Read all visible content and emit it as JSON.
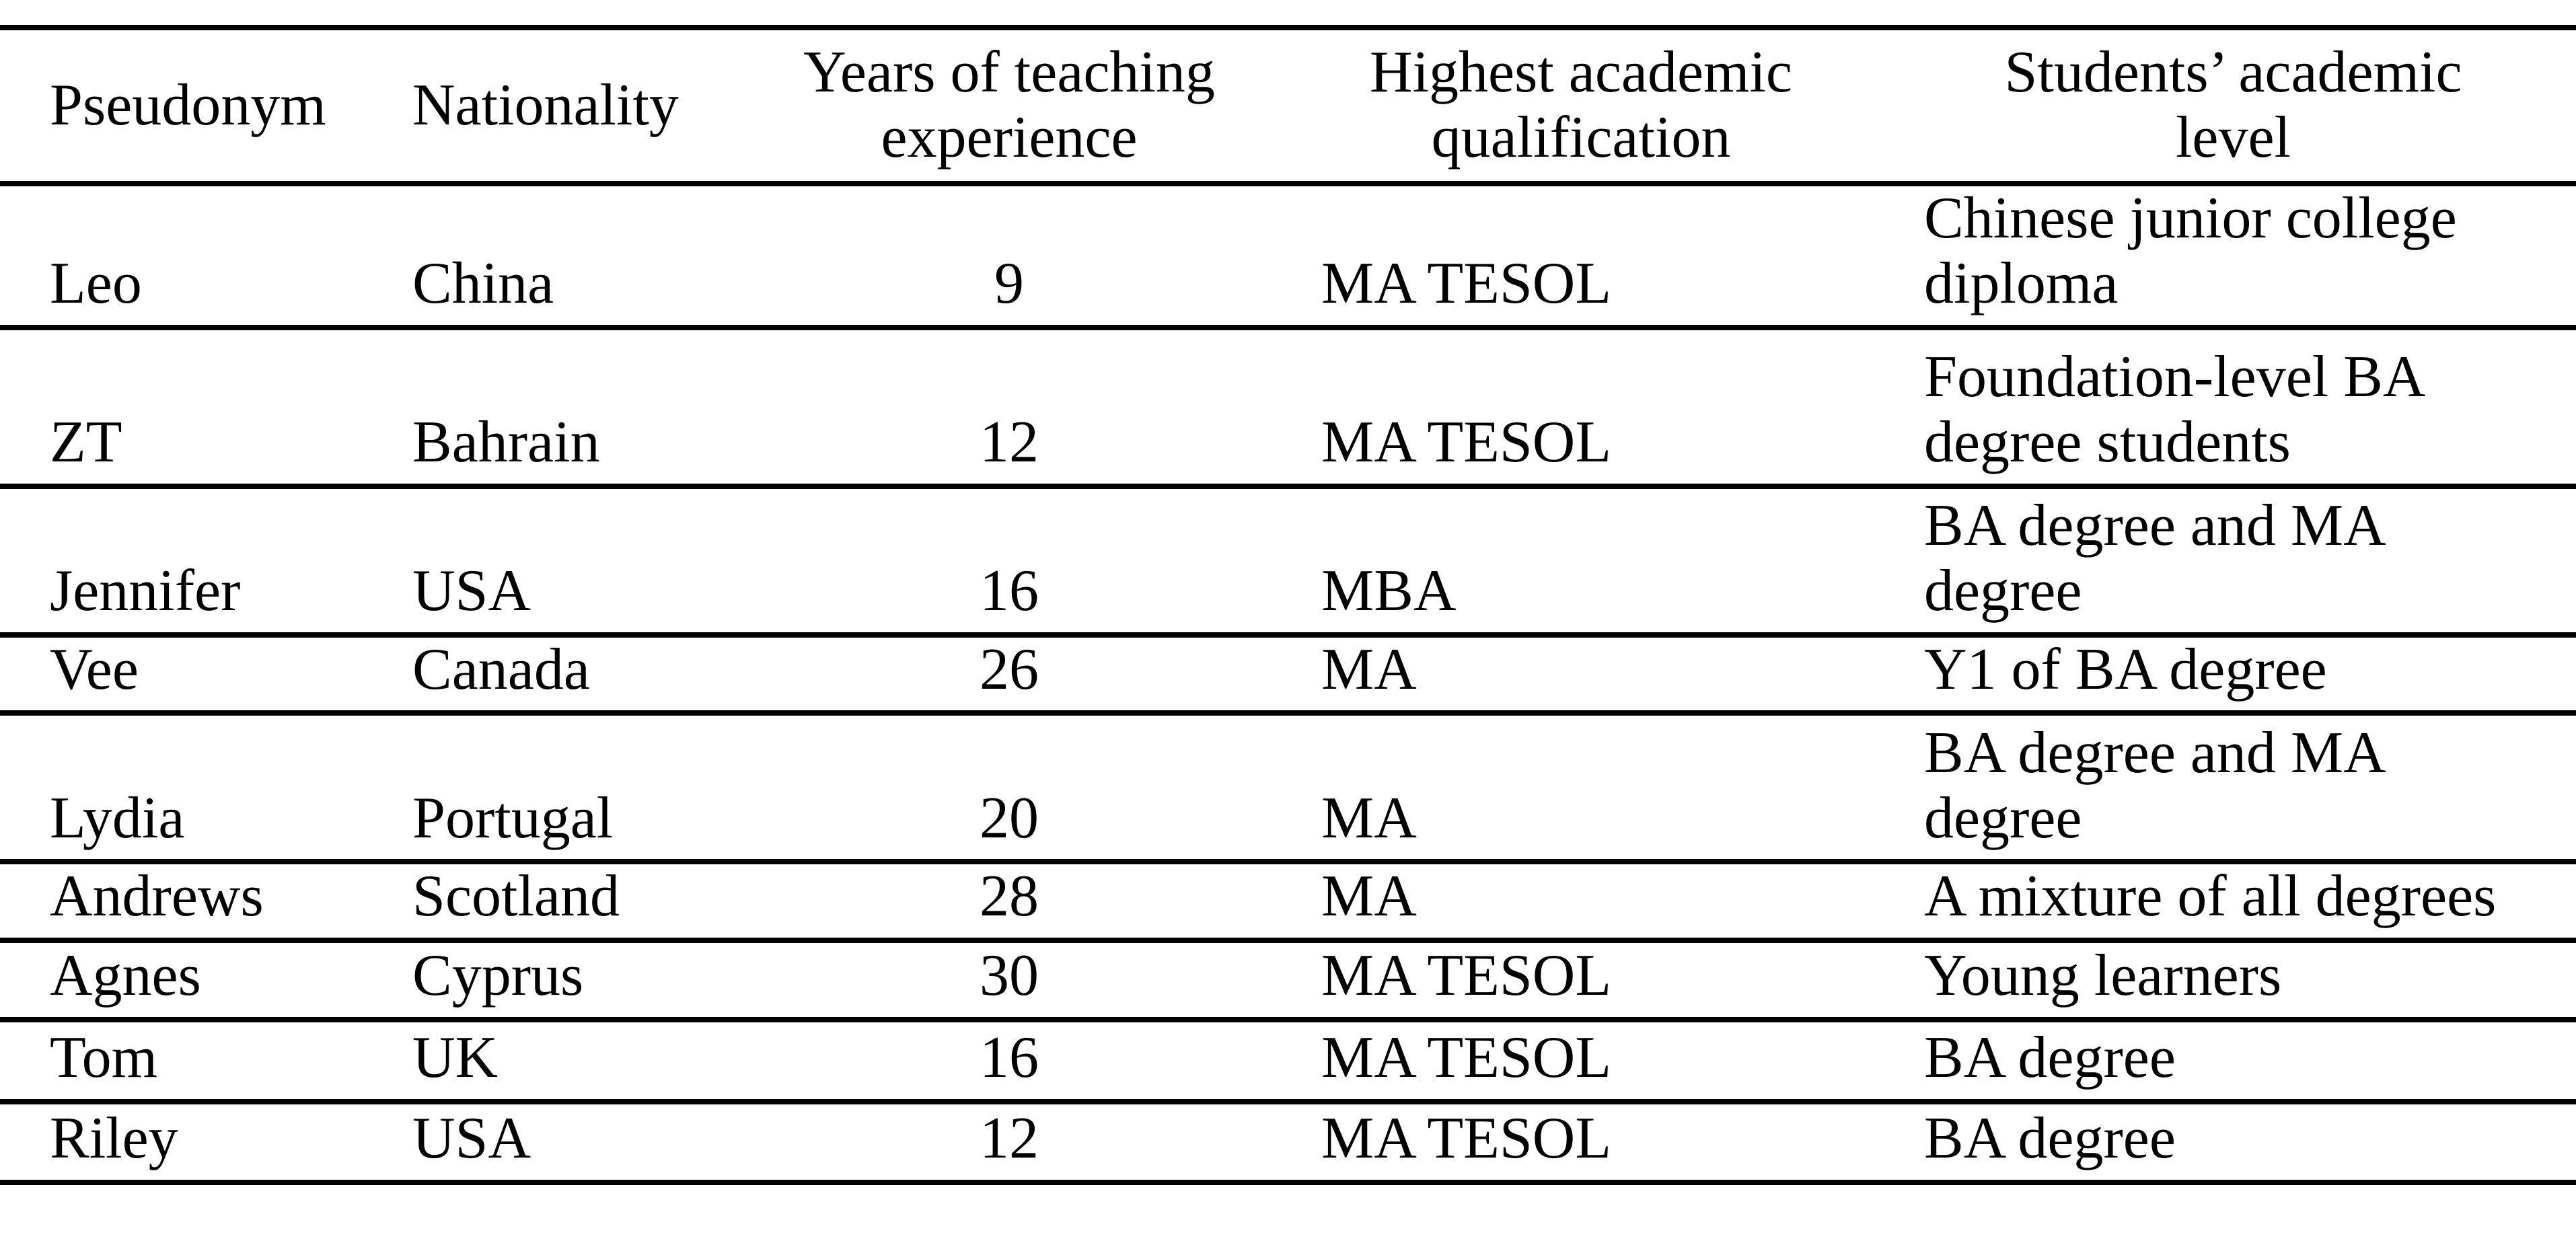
{
  "colors": {
    "background": "#ffffff",
    "text": "#000000",
    "rule": "#000000"
  },
  "table": {
    "columns": [
      "Pseudonym",
      "Nationality",
      "Years of teaching experience",
      "Highest academic qualification",
      "Students’ academic level"
    ],
    "rows": [
      {
        "pseudonym": "Leo",
        "nationality": "China",
        "years": 9,
        "qualification": "MA TESOL",
        "level": "Chinese junior college diploma"
      },
      {
        "pseudonym": "ZT",
        "nationality": "Bahrain",
        "years": 12,
        "qualification": "MA TESOL",
        "level": "Foundation-level BA degree students"
      },
      {
        "pseudonym": "Jennifer",
        "nationality": "USA",
        "years": 16,
        "qualification": "MBA",
        "level": "BA degree and MA degree"
      },
      {
        "pseudonym": "Vee",
        "nationality": "Canada",
        "years": 26,
        "qualification": "MA",
        "level": "Y1 of BA degree"
      },
      {
        "pseudonym": "Lydia",
        "nationality": "Portugal",
        "years": 20,
        "qualification": "MA",
        "level": "BA degree and MA degree"
      },
      {
        "pseudonym": "Andrews",
        "nationality": "Scotland",
        "years": 28,
        "qualification": "MA",
        "level": "A mixture of all degrees"
      },
      {
        "pseudonym": "Agnes",
        "nationality": "Cyprus",
        "years": 30,
        "qualification": "MA TESOL",
        "level": "Young learners"
      },
      {
        "pseudonym": "Tom",
        "nationality": "UK",
        "years": 16,
        "qualification": "MA TESOL",
        "level": "BA degree"
      },
      {
        "pseudonym": "Riley",
        "nationality": "USA",
        "years": 12,
        "qualification": "MA TESOL",
        "level": "BA degree"
      }
    ]
  }
}
